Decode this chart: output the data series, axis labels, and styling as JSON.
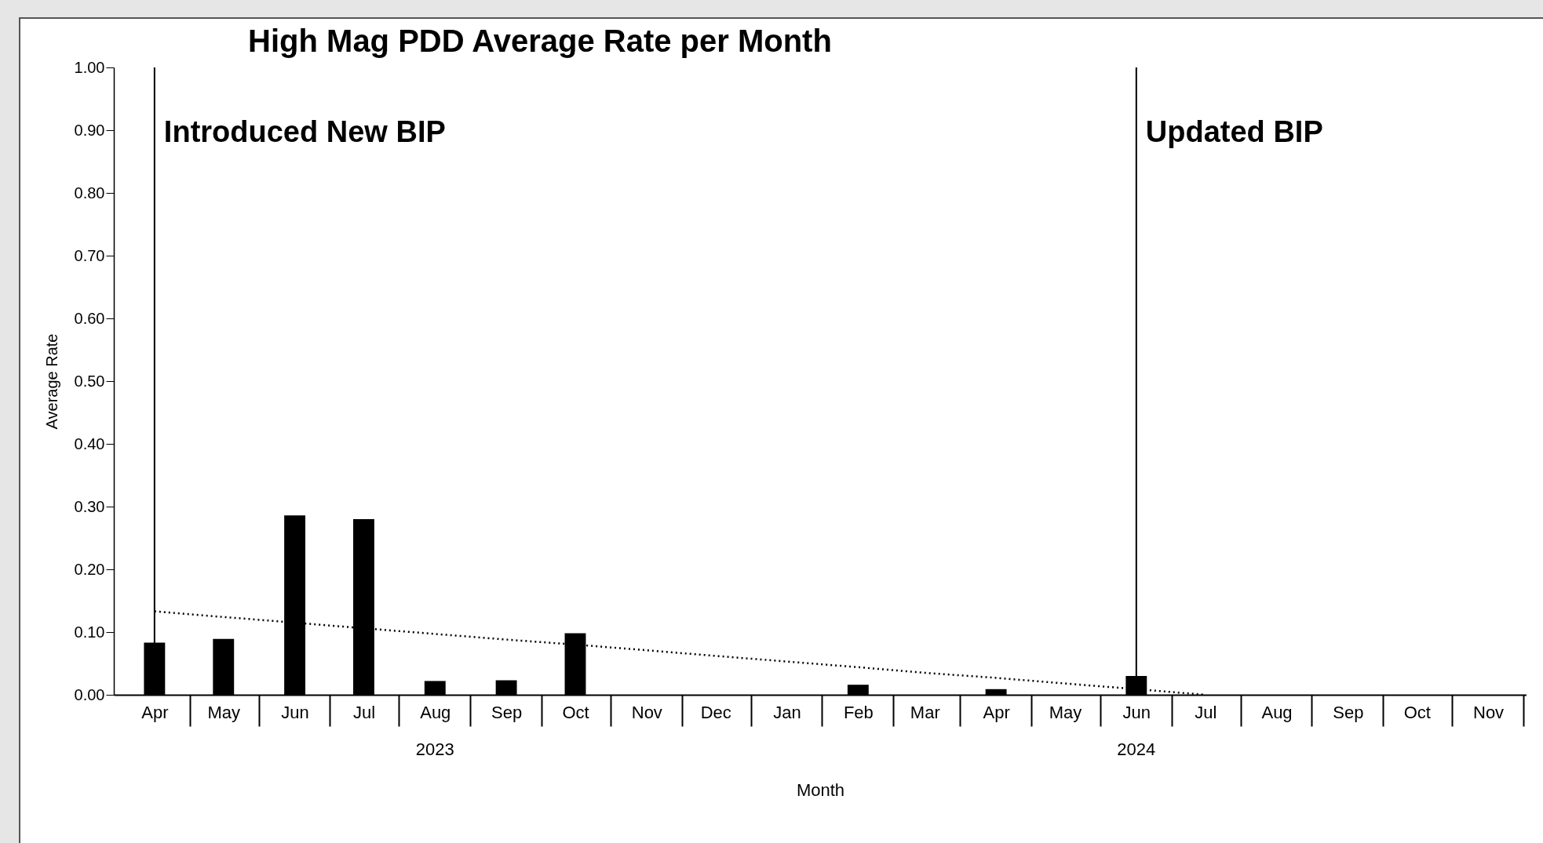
{
  "chart_data": {
    "type": "bar",
    "title": "High Mag PDD Average Rate per Month",
    "xlabel": "Month",
    "ylabel": "Average Rate",
    "x": [
      "2023-04",
      "2023-05",
      "2023-06",
      "2023-07",
      "2023-08",
      "2023-09",
      "2023-10",
      "2023-11",
      "2023-12",
      "2024-01",
      "2024-02",
      "2024-03",
      "2024-04",
      "2024-05",
      "2024-06",
      "2024-07"
    ],
    "series": [
      {
        "color": "#000000",
        "values": [
          0.083,
          0.089,
          0.286,
          0.28,
          0.022,
          0.023,
          0.098,
          null,
          null,
          null,
          0.016,
          null,
          0.009,
          null,
          0.03,
          null
        ]
      },
      {
        "type": "line",
        "color": "#000000",
        "line_style": "dotted",
        "marker": "none",
        "values": [
          0.133,
          0.124,
          0.115,
          0.106,
          0.097,
          0.088,
          0.08,
          0.071,
          0.062,
          0.053,
          0.044,
          0.035,
          0.027,
          0.018,
          0.009,
          0.0
        ]
      }
    ],
    "ylim": [
      0,
      1
    ],
    "yticks": [
      {
        "value": 0,
        "label": "0.00"
      },
      {
        "value": 0.1,
        "label": "0.10"
      },
      {
        "value": 0.2,
        "label": "0.20"
      },
      {
        "value": 0.3,
        "label": "0.30"
      },
      {
        "value": 0.4,
        "label": "0.40"
      },
      {
        "value": 0.5,
        "label": "0.50"
      },
      {
        "value": 0.6,
        "label": "0.60"
      },
      {
        "value": 0.7,
        "label": "0.70"
      },
      {
        "value": 0.8,
        "label": "0.80"
      },
      {
        "value": 0.9,
        "label": "0.90"
      },
      {
        "value": 1,
        "label": "1.00"
      }
    ],
    "ref_lines": [
      {
        "axis": "x",
        "value": "2023-04",
        "label": "Introduced New BIP",
        "color": "#000000"
      },
      {
        "axis": "x",
        "value": "2024-06",
        "label": "Updated BIP",
        "color": "#000000"
      }
    ],
    "xticks": [
      {
        "value": "2023-04",
        "label": "Apr"
      },
      {
        "value": "2023-05",
        "label": "May"
      },
      {
        "value": "2023-06",
        "label": "Jun"
      },
      {
        "value": "2023-07",
        "label": "Jul"
      },
      {
        "value": "2023-08",
        "label": "Aug"
      },
      {
        "value": "2023-09",
        "label": "Sep"
      },
      {
        "value": "2023-10",
        "label": "Oct"
      },
      {
        "value": "2023-11",
        "label": "Nov"
      },
      {
        "value": "2023-12",
        "label": "Dec"
      },
      {
        "value": "2024-01",
        "label": "Jan"
      },
      {
        "value": "2024-02",
        "label": "Feb"
      },
      {
        "value": "2024-03",
        "label": "Mar"
      },
      {
        "value": "2024-04",
        "label": "Apr"
      },
      {
        "value": "2024-05",
        "label": "May"
      },
      {
        "value": "2024-06",
        "label": "Jun"
      },
      {
        "value": "2024-07",
        "label": "Jul"
      },
      {
        "value": "2024-08",
        "label": "Aug"
      },
      {
        "value": "2024-09",
        "label": "Sep"
      },
      {
        "value": "2024-10",
        "label": "Oct"
      },
      {
        "value": "2024-11",
        "label": "Nov"
      }
    ],
    "xlim": [
      "2023-03-16",
      "2024-11-16"
    ],
    "annotations": [
      "2023",
      "2024"
    ],
    "grid": false
  }
}
